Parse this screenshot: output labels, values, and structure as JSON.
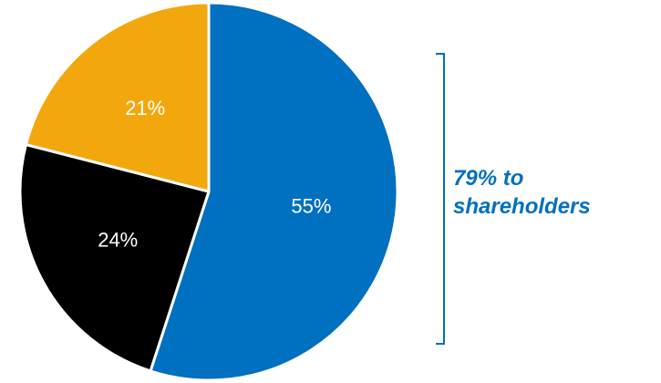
{
  "chart_data": {
    "type": "pie",
    "slices": [
      {
        "label": "55%",
        "value": 55,
        "color": "#0070c0"
      },
      {
        "label": "24%",
        "value": 24,
        "color": "#000000"
      },
      {
        "label": "21%",
        "value": 21,
        "color": "#f2a80d"
      }
    ],
    "start": "top, clockwise",
    "annotation": "79%  to\nshareholders"
  },
  "colors": {
    "accent": "#0070c0",
    "slice_border": "#ffffff"
  }
}
